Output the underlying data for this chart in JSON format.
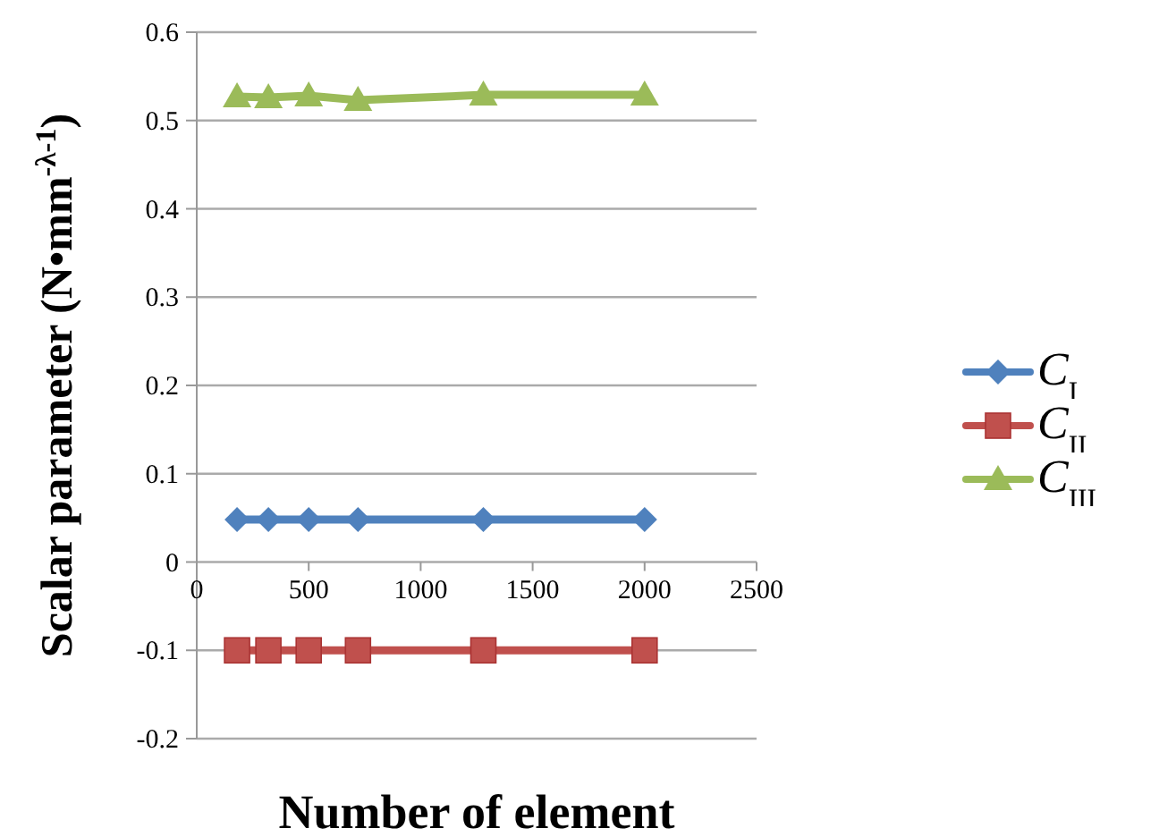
{
  "chart_data": {
    "type": "line",
    "xlabel": "Number of element",
    "ylabel": "Scalar parameter (N•mm$^{-λ-1}$)",
    "x": [
      180,
      320,
      500,
      720,
      1280,
      2000
    ],
    "series": [
      {
        "name": "C$_{I}$",
        "color": "#4f81bd",
        "marker": "diamond",
        "values": [
          0.048,
          0.048,
          0.048,
          0.048,
          0.048,
          0.048
        ]
      },
      {
        "name": "C$_{II}$",
        "color": "#c0504d",
        "marker": "square",
        "values": [
          -0.1,
          -0.1,
          -0.1,
          -0.1,
          -0.1,
          -0.1
        ]
      },
      {
        "name": "C$_{III}$",
        "color": "#9bbb59",
        "marker": "triangle",
        "values": [
          0.527,
          0.526,
          0.528,
          0.523,
          0.529,
          0.529
        ]
      }
    ],
    "xlim": [
      0,
      2500
    ],
    "xticks": [
      0,
      500,
      1000,
      1500,
      2000,
      2500
    ],
    "ylim": [
      -0.2,
      0.6
    ],
    "yticks": [
      -0.2,
      -0.1,
      0,
      0.1,
      0.2,
      0.3,
      0.4,
      0.5,
      0.6
    ],
    "grid": "y",
    "legend": "right",
    "line_style": "solid"
  }
}
